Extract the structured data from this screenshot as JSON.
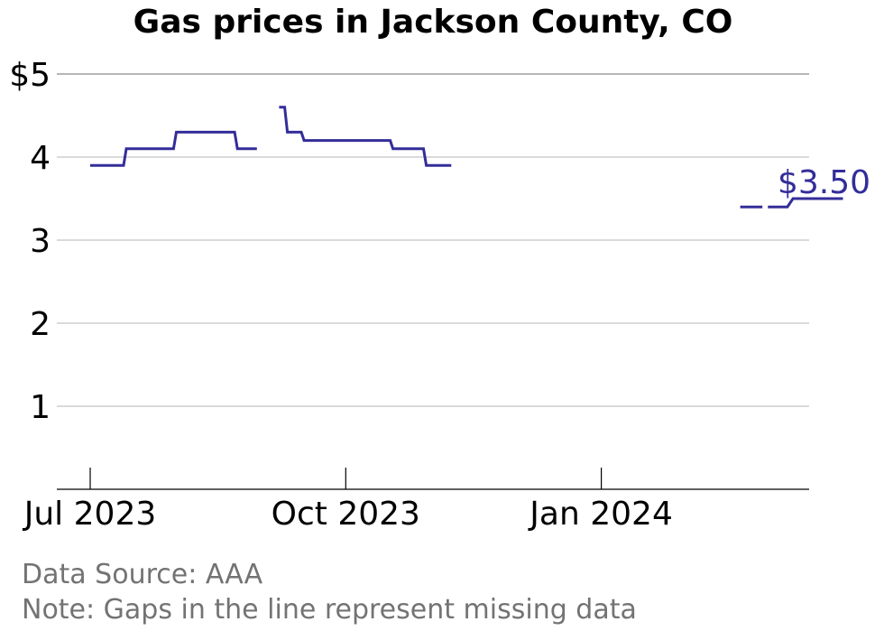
{
  "chart_data": {
    "type": "line",
    "title": "Gas prices in Jackson County, CO",
    "xlabel": "",
    "ylabel": "",
    "y_ticks": [
      {
        "value": 5,
        "label": "$5"
      },
      {
        "value": 4,
        "label": "4"
      },
      {
        "value": 3,
        "label": "3"
      },
      {
        "value": 2,
        "label": "2"
      },
      {
        "value": 1,
        "label": "1"
      }
    ],
    "x_ticks": [
      {
        "date": "2023-07-01",
        "label": "Jul 2023"
      },
      {
        "date": "2023-10-01",
        "label": "Oct 2023"
      },
      {
        "date": "2024-01-01",
        "label": "Jan 2024"
      }
    ],
    "xlim": [
      "2023-06-21",
      "2024-04-08"
    ],
    "ylim": [
      0,
      5
    ],
    "grid": true,
    "line_color": "#332d99",
    "end_label": "$3.50",
    "series": [
      {
        "segments": [
          [
            [
              "2023-07-01",
              3.9
            ],
            [
              "2023-07-13",
              3.9
            ],
            [
              "2023-07-14",
              4.1
            ],
            [
              "2023-07-31",
              4.1
            ],
            [
              "2023-08-01",
              4.3
            ],
            [
              "2023-08-22",
              4.3
            ],
            [
              "2023-08-23",
              4.1
            ],
            [
              "2023-08-30",
              4.1
            ]
          ],
          [
            [
              "2023-09-07",
              4.6
            ],
            [
              "2023-09-09",
              4.6
            ],
            [
              "2023-09-10",
              4.3
            ],
            [
              "2023-09-15",
              4.3
            ],
            [
              "2023-09-16",
              4.2
            ],
            [
              "2023-10-17",
              4.2
            ],
            [
              "2023-10-18",
              4.1
            ],
            [
              "2023-10-29",
              4.1
            ],
            [
              "2023-10-30",
              3.9
            ],
            [
              "2023-11-08",
              3.9
            ]
          ],
          [
            [
              "2024-02-20",
              3.4
            ],
            [
              "2024-02-28",
              3.4
            ]
          ],
          [
            [
              "2024-03-01",
              3.4
            ],
            [
              "2024-03-08",
              3.4
            ],
            [
              "2024-03-10",
              3.5
            ],
            [
              "2024-03-28",
              3.5
            ]
          ]
        ]
      }
    ]
  },
  "footer": {
    "source": "Data Source: AAA",
    "note": "Note: Gaps in the line represent missing data"
  }
}
